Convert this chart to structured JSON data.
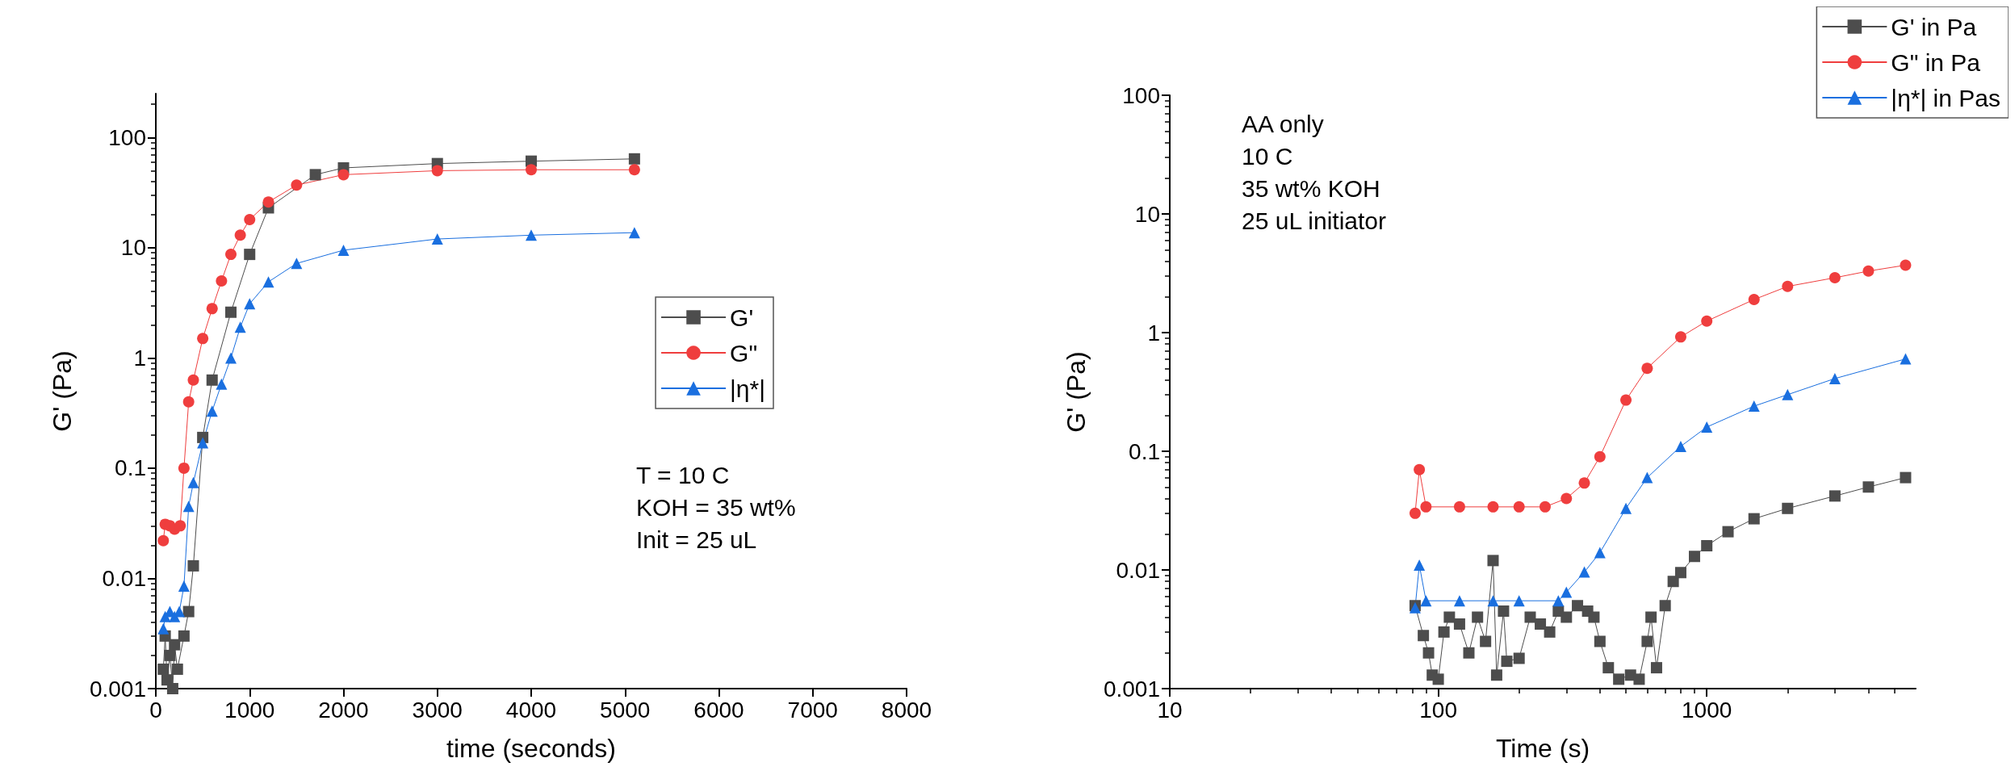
{
  "chart_data": [
    {
      "type": "line",
      "xlabel": "time (seconds)",
      "ylabel": "G' (Pa)",
      "log": "y",
      "xlim": [
        0,
        8000
      ],
      "xticks": [
        0,
        1000,
        2000,
        3000,
        4000,
        5000,
        6000,
        7000,
        8000
      ],
      "ylim": [
        0.001,
        250
      ],
      "yticks": [
        0.001,
        0.01,
        0.1,
        1,
        10,
        100
      ],
      "legend": "right",
      "annotations": [
        "T = 10 C",
        "KOH = 35 wt%",
        "Init = 25 uL"
      ],
      "series": [
        {
          "name": "G'",
          "color": "#4d4d4d",
          "marker": "square",
          "x": [
            80,
            100,
            120,
            150,
            180,
            200,
            230,
            300,
            350,
            400,
            500,
            600,
            800,
            1000,
            1200,
            1700,
            2000,
            3000,
            4000,
            5100
          ],
          "values": [
            0.0015,
            0.003,
            0.0012,
            0.002,
            0.001,
            0.0025,
            0.0015,
            0.003,
            0.005,
            0.013,
            0.19,
            0.63,
            2.6,
            8.7,
            23,
            46,
            53,
            58,
            61,
            64
          ]
        },
        {
          "name": "G\"",
          "color": "#ef3e3e",
          "marker": "circle",
          "x": [
            80,
            100,
            150,
            200,
            260,
            300,
            350,
            400,
            500,
            600,
            700,
            800,
            900,
            1000,
            1200,
            1500,
            2000,
            3000,
            4000,
            5100
          ],
          "values": [
            0.022,
            0.031,
            0.03,
            0.028,
            0.03,
            0.1,
            0.4,
            0.63,
            1.5,
            2.8,
            5,
            8.7,
            13,
            18,
            26,
            37,
            46,
            50,
            51,
            51
          ]
        },
        {
          "name": "|η*|",
          "color": "#1a6fdf",
          "marker": "triangle",
          "x": [
            80,
            100,
            150,
            200,
            250,
            300,
            350,
            400,
            500,
            600,
            700,
            800,
            900,
            1000,
            1200,
            1500,
            2000,
            3000,
            4000,
            5100
          ],
          "values": [
            0.0035,
            0.0045,
            0.005,
            0.0045,
            0.005,
            0.0085,
            0.045,
            0.074,
            0.17,
            0.33,
            0.58,
            1.0,
            1.9,
            3.1,
            4.9,
            7.2,
            9.5,
            12,
            13,
            13.7
          ]
        }
      ]
    },
    {
      "type": "line",
      "xlabel": "Time (s)",
      "ylabel": "G' (Pa)",
      "log": "xy",
      "xlim": [
        10,
        6000
      ],
      "xticks": [
        10,
        100,
        1000
      ],
      "ylim": [
        0.001,
        100
      ],
      "yticks": [
        0.001,
        0.01,
        0.1,
        1,
        10,
        100
      ],
      "legend": "top right",
      "annotations": [
        "AA only",
        "10 C",
        "35 wt% KOH",
        "25 uL initiator"
      ],
      "series": [
        {
          "name": "G' in Pa",
          "color": "#4d4d4d",
          "marker": "square",
          "x": [
            82,
            88,
            92,
            95,
            100,
            105,
            110,
            120,
            130,
            140,
            150,
            160,
            165,
            175,
            180,
            200,
            220,
            240,
            260,
            280,
            300,
            330,
            360,
            380,
            400,
            430,
            470,
            520,
            560,
            600,
            620,
            650,
            700,
            750,
            800,
            900,
            1000,
            1200,
            1500,
            2000,
            3000,
            4000,
            5500
          ],
          "values": [
            0.005,
            0.0028,
            0.002,
            0.0013,
            0.0012,
            0.003,
            0.004,
            0.0035,
            0.002,
            0.004,
            0.0025,
            0.012,
            0.0013,
            0.0045,
            0.0017,
            0.0018,
            0.004,
            0.0035,
            0.003,
            0.0045,
            0.004,
            0.005,
            0.0045,
            0.004,
            0.0025,
            0.0015,
            0.0012,
            0.0013,
            0.0012,
            0.0025,
            0.004,
            0.0015,
            0.005,
            0.008,
            0.0095,
            0.013,
            0.016,
            0.021,
            0.027,
            0.033,
            0.042,
            0.05,
            0.06
          ]
        },
        {
          "name": "G\" in Pa",
          "color": "#ef3e3e",
          "marker": "circle",
          "x": [
            82,
            85,
            90,
            120,
            160,
            200,
            250,
            300,
            350,
            400,
            500,
            600,
            800,
            1000,
            1500,
            2000,
            3000,
            4000,
            5500
          ],
          "values": [
            0.03,
            0.07,
            0.034,
            0.034,
            0.034,
            0.034,
            0.034,
            0.04,
            0.054,
            0.09,
            0.27,
            0.5,
            0.92,
            1.25,
            1.9,
            2.45,
            2.9,
            3.3,
            3.7
          ]
        },
        {
          "name": "|η*| in Pas",
          "color": "#1a6fdf",
          "marker": "triangle",
          "x": [
            82,
            85,
            90,
            120,
            160,
            200,
            280,
            300,
            350,
            400,
            500,
            600,
            800,
            1000,
            1500,
            2000,
            3000,
            5500
          ],
          "values": [
            0.0048,
            0.011,
            0.0055,
            0.0055,
            0.0055,
            0.0055,
            0.0055,
            0.0065,
            0.0096,
            0.014,
            0.033,
            0.06,
            0.11,
            0.16,
            0.24,
            0.3,
            0.41,
            0.6
          ]
        }
      ]
    }
  ]
}
